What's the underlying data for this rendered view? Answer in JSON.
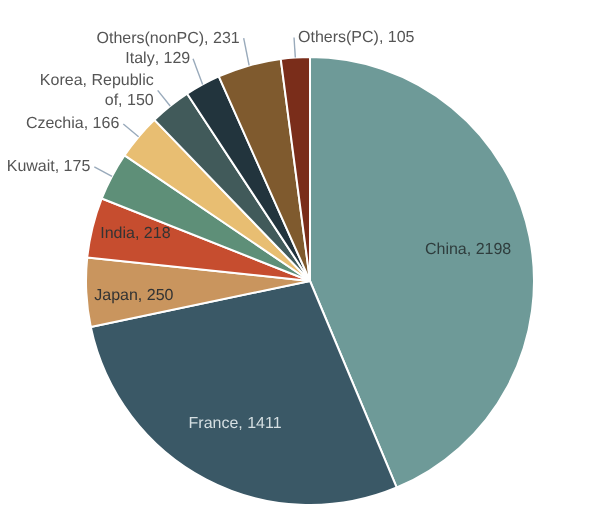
{
  "chart_data": {
    "type": "pie",
    "categories": [
      "China",
      "France",
      "Japan",
      "India",
      "Kuwait",
      "Czechia",
      "Korea, Republic of",
      "Italy",
      "Others(nonPC)",
      "Others(PC)"
    ],
    "values": [
      2198,
      1411,
      250,
      218,
      175,
      166,
      150,
      129,
      231,
      105
    ],
    "colors": [
      "#6e9a98",
      "#3a5866",
      "#c9955e",
      "#c64d2f",
      "#5e8f78",
      "#e8be72",
      "#415a5a",
      "#22343d",
      "#7f5a2e",
      "#7a2d1a"
    ],
    "value_labels": [
      ", 2198",
      ", 1411",
      ", 250",
      ", 218",
      ", 175",
      ", 166",
      ", 150",
      ", 129",
      ", 231",
      ", 105"
    ],
    "legend": false
  }
}
